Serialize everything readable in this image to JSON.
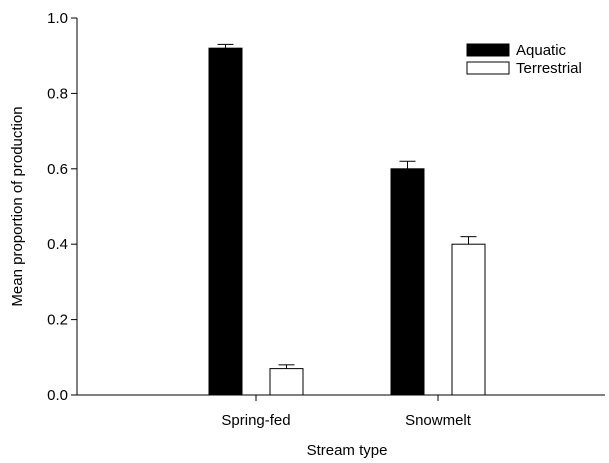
{
  "chart_data": {
    "type": "bar",
    "categories": [
      "Spring-fed",
      "Snowmelt"
    ],
    "series": [
      {
        "name": "Aquatic",
        "values": [
          0.92,
          0.6
        ],
        "errors": [
          0.01,
          0.02
        ],
        "color": "#000000"
      },
      {
        "name": "Terrestrial",
        "values": [
          0.07,
          0.4
        ],
        "errors": [
          0.01,
          0.02
        ],
        "color": "#ffffff"
      }
    ],
    "xlabel": "Stream type",
    "ylabel": "Mean proportion of production",
    "ylim": [
      0.0,
      1.0
    ],
    "yticks": [
      "0.0",
      "0.2",
      "0.4",
      "0.6",
      "0.8",
      "1.0"
    ],
    "legend_position": "top-right",
    "grid": false
  }
}
